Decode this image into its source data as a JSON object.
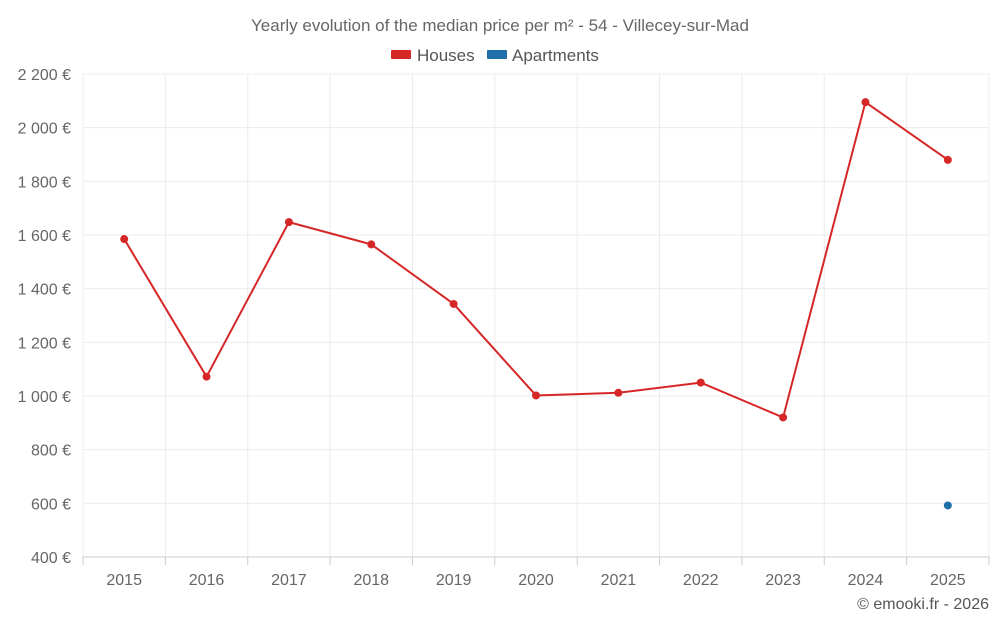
{
  "chart_data": {
    "type": "line",
    "title": "Yearly evolution of the median price per m² - 54 - Villecey-sur-Mad",
    "xlabel": "",
    "ylabel": "",
    "categories": [
      "2015",
      "2016",
      "2017",
      "2018",
      "2019",
      "2020",
      "2021",
      "2022",
      "2023",
      "2024",
      "2025"
    ],
    "ylim": [
      400,
      2200
    ],
    "yticks": [
      400,
      600,
      800,
      1000,
      1200,
      1400,
      1600,
      1800,
      2000,
      2200
    ],
    "ytick_labels": [
      "400 €",
      "600 €",
      "800 €",
      "1 000 €",
      "1 200 €",
      "1 400 €",
      "1 600 €",
      "1 800 €",
      "2 000 €",
      "2 200 €"
    ],
    "grid": true,
    "legend_position": "top-center",
    "series": [
      {
        "name": "Houses",
        "color": "#d62728",
        "values": [
          1585,
          1072,
          1648,
          1565,
          1343,
          1002,
          1012,
          1050,
          920,
          2095,
          1880
        ]
      },
      {
        "name": "Apartments",
        "color": "#1f6fa8",
        "values": [
          null,
          null,
          null,
          null,
          null,
          null,
          null,
          null,
          null,
          null,
          592
        ]
      }
    ]
  },
  "credit": "© emooki.fr - 2026"
}
